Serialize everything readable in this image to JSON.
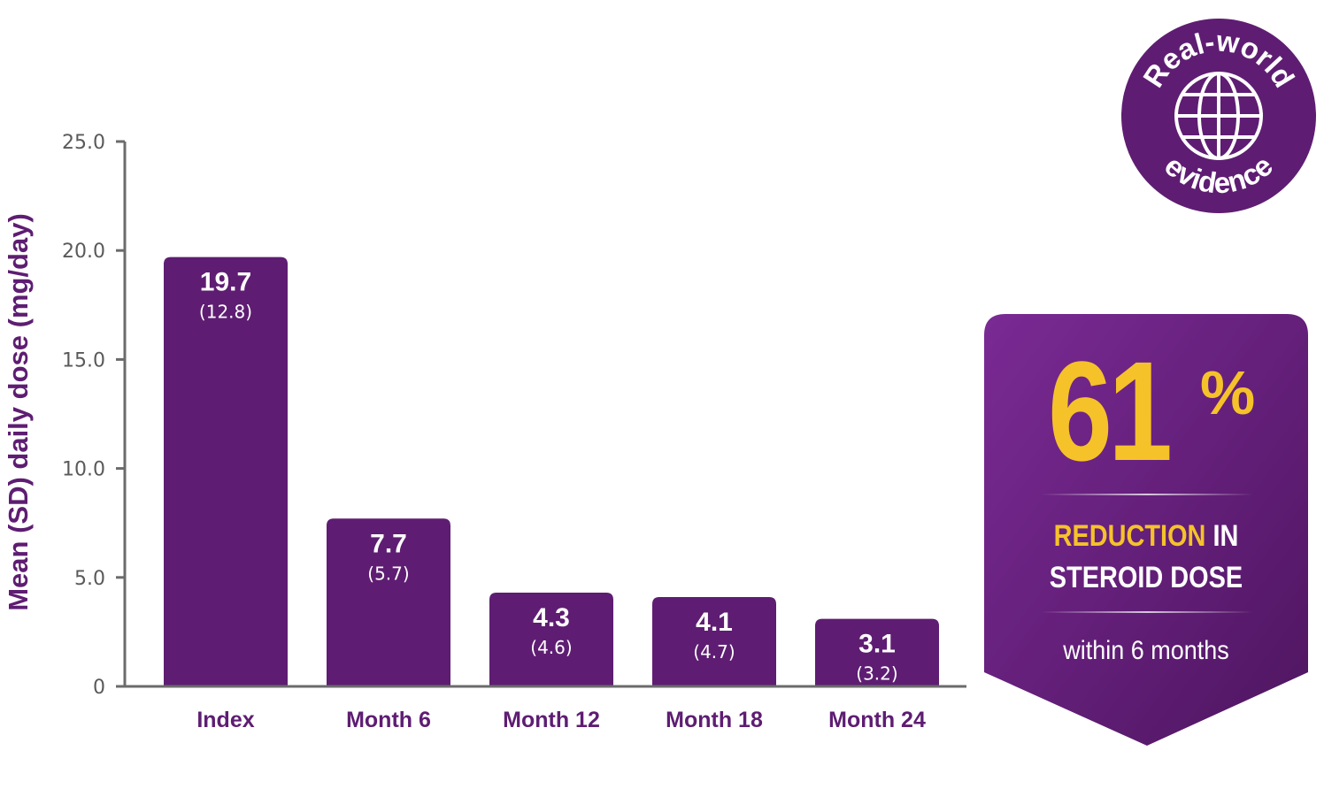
{
  "chart_data": {
    "type": "bar",
    "ylabel": "Mean (SD) daily dose (mg/day)",
    "xlabel": "",
    "categories": [
      "Index",
      "Month 6",
      "Month 12",
      "Month 18",
      "Month 24"
    ],
    "values": [
      19.7,
      7.7,
      4.3,
      4.1,
      3.1
    ],
    "value_labels": [
      "19.7",
      "7.7",
      "4.3",
      "4.1",
      "3.1"
    ],
    "sd_labels": [
      "(12.8)",
      "(5.7)",
      "(4.6)",
      "(4.7)",
      "(3.2)"
    ],
    "ylim": [
      0,
      25
    ],
    "yticks": [
      0,
      5,
      10,
      15,
      20,
      25
    ],
    "ytick_labels": [
      "0",
      "5.0",
      "10.0",
      "15.0",
      "20.0",
      "25.0"
    ],
    "grid": false,
    "bar_color": "#5e1d72"
  },
  "badge": {
    "top_text": "Real-world",
    "bottom_text": "evidence",
    "icon": "globe-icon",
    "color": "#5e1d72"
  },
  "callout": {
    "value": "61",
    "unit": "%",
    "line1_highlight": "REDUCTION",
    "line1_rest": " IN",
    "line2": "STEROID DOSE",
    "subtext": "within 6 months",
    "accent_color": "#f5c22a",
    "bg_color": "#5e1d72"
  }
}
